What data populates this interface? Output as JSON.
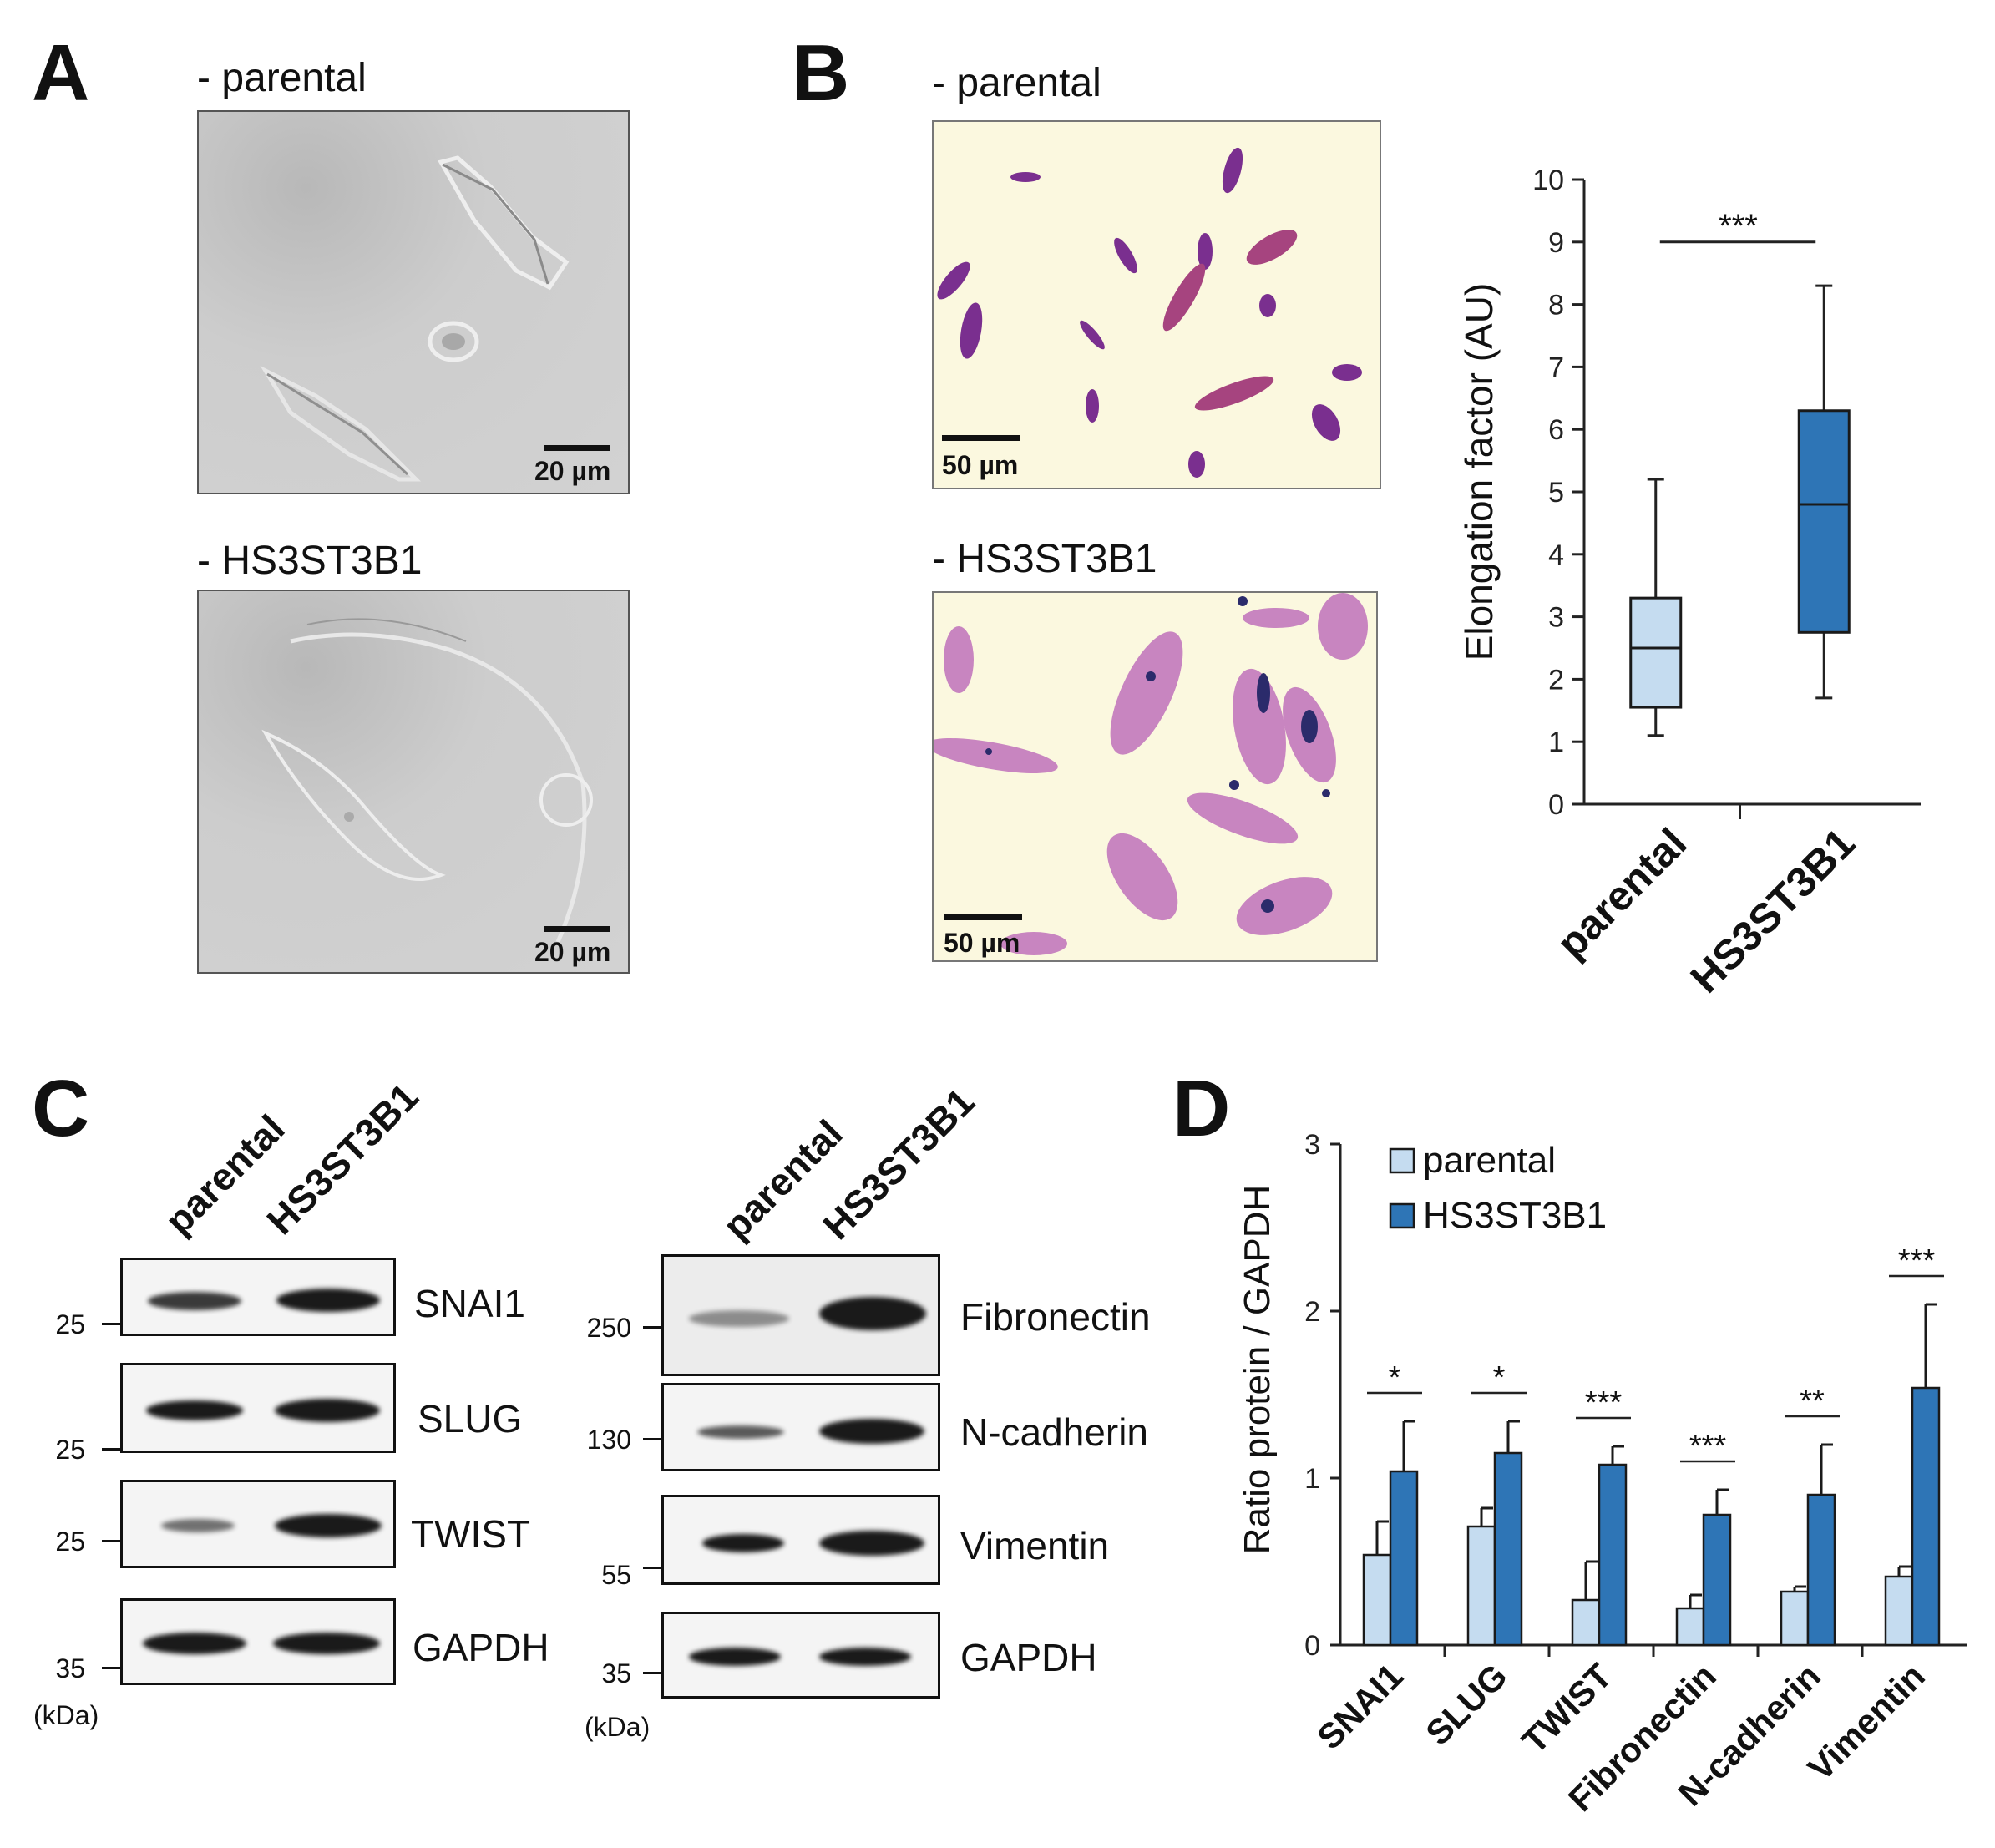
{
  "panels": {
    "A": {
      "label": "A",
      "top_caption": "- parental",
      "bottom_caption": "- HS3ST3B1",
      "scale_top": "20 µm",
      "scale_bottom": "20 µm"
    },
    "B": {
      "label": "B",
      "top_caption": "- parental",
      "bottom_caption": "- HS3ST3B1",
      "scale_top": "50 µm",
      "scale_bottom": "50 µm"
    },
    "C": {
      "label": "C",
      "lanes": [
        "parental",
        "HS3ST3B1"
      ],
      "kda_label": "(kDa)",
      "left_blots": [
        {
          "protein": "SNAI1",
          "mw": "25"
        },
        {
          "protein": "SLUG",
          "mw": "25"
        },
        {
          "protein": "TWIST",
          "mw": "25"
        },
        {
          "protein": "GAPDH",
          "mw": "35"
        }
      ],
      "right_blots": [
        {
          "protein": "Fibronectin",
          "mw": "250"
        },
        {
          "protein": "N-cadherin",
          "mw": "130"
        },
        {
          "protein": "Vimentin",
          "mw": "55"
        },
        {
          "protein": "GAPDH",
          "mw": "35"
        }
      ]
    },
    "D": {
      "label": "D"
    }
  },
  "colors": {
    "parental": "#c5dcf0",
    "hs3st3b1": "#2e75b6",
    "outline": "#1a1a1a"
  },
  "chart_data": [
    {
      "type": "box",
      "panel": "B",
      "ylabel": "Elongation factor (AU)",
      "ylim": [
        0,
        10
      ],
      "yticks": [
        0,
        1,
        2,
        3,
        4,
        5,
        6,
        7,
        8,
        9,
        10
      ],
      "categories": [
        "parental",
        "HS3ST3B1"
      ],
      "boxes": [
        {
          "name": "parental",
          "min": 1.1,
          "q1": 1.55,
          "median": 2.5,
          "q3": 3.3,
          "max": 5.2
        },
        {
          "name": "HS3ST3B1",
          "min": 1.7,
          "q1": 2.75,
          "median": 4.8,
          "q3": 6.3,
          "max": 8.3
        }
      ],
      "significance": "***"
    },
    {
      "type": "bar",
      "panel": "D",
      "ylabel": "Ratio protein / GAPDH",
      "ylim": [
        0,
        3
      ],
      "yticks": [
        0,
        1,
        2,
        3
      ],
      "categories": [
        "SNAI1",
        "SLUG",
        "TWIST",
        "Fibronectin",
        "N-cadherin",
        "Vimentin"
      ],
      "series": [
        {
          "name": "parental",
          "values": [
            0.54,
            0.71,
            0.27,
            0.22,
            0.32,
            0.41
          ],
          "errors": [
            0.2,
            0.11,
            0.23,
            0.08,
            0.03,
            0.06
          ]
        },
        {
          "name": "HS3ST3B1",
          "values": [
            1.04,
            1.15,
            1.08,
            0.78,
            0.9,
            1.54
          ],
          "errors": [
            0.3,
            0.19,
            0.11,
            0.15,
            0.3,
            0.5
          ]
        }
      ],
      "significance": [
        "*",
        "*",
        "***",
        "***",
        "**",
        "***"
      ],
      "legend": "top-left"
    }
  ]
}
